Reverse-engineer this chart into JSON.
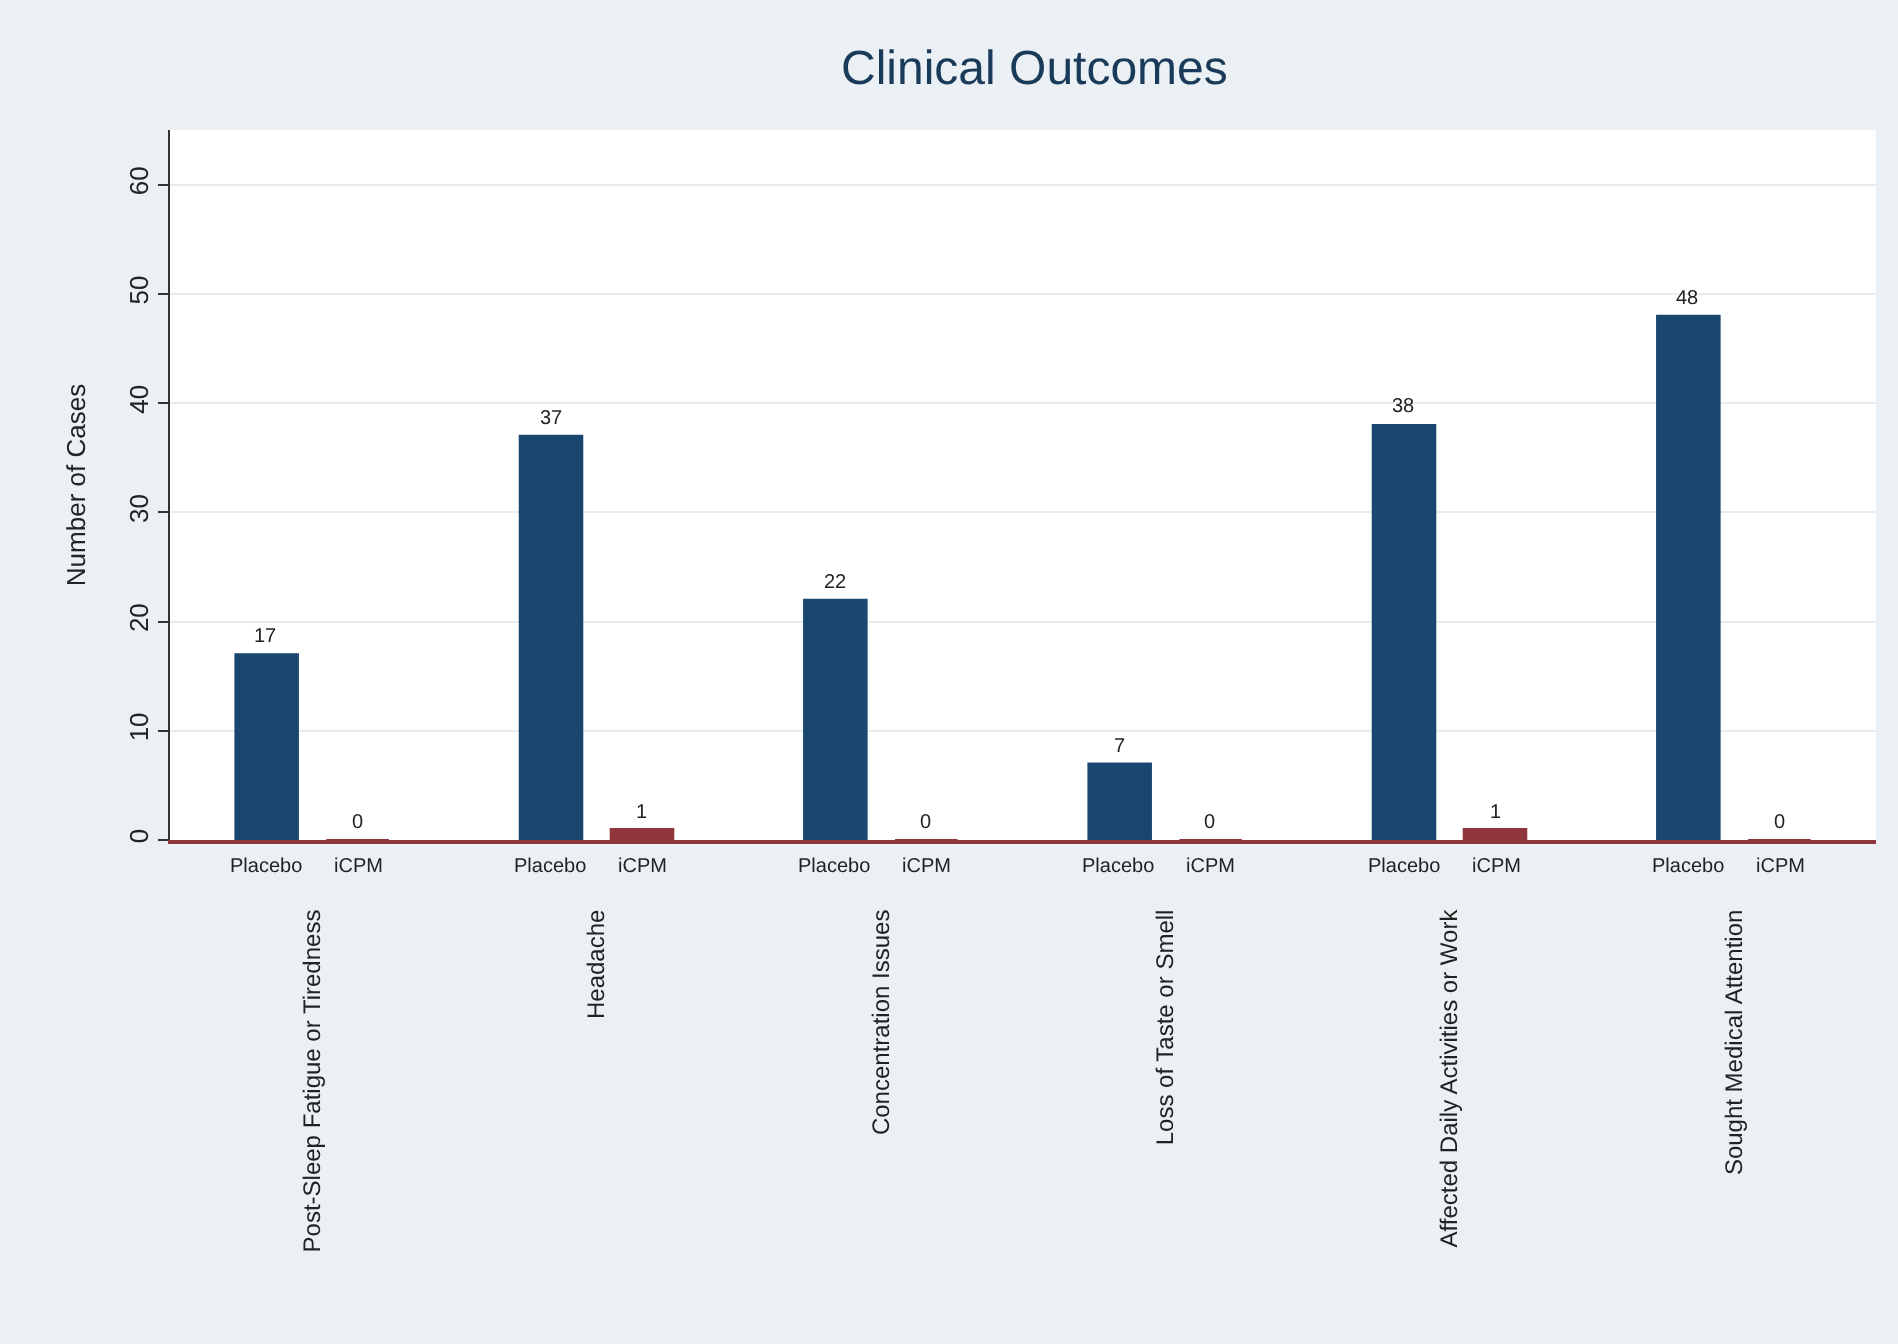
{
  "chart_data": {
    "type": "bar",
    "title": "Clinical Outcomes",
    "ylabel": "Number of Cases",
    "categories": [
      "Post-Sleep Fatigue or Tiredness",
      "Headache",
      "Concentration Issues",
      "Loss of Taste or Smell",
      "Affected Daily Activities or Work",
      "Sought Medical Attention"
    ],
    "series": [
      {
        "name": "Placebo",
        "color": "#1a476f",
        "values": [
          17,
          37,
          22,
          7,
          38,
          48
        ]
      },
      {
        "name": "iCPM",
        "color": "#90353b",
        "values": [
          0,
          1,
          0,
          0,
          1,
          0
        ]
      }
    ],
    "ylim": [
      0,
      65
    ],
    "yticks": [
      0,
      10,
      20,
      30,
      40,
      50,
      60
    ],
    "grid": "y",
    "legend": false,
    "data_labels": true
  }
}
